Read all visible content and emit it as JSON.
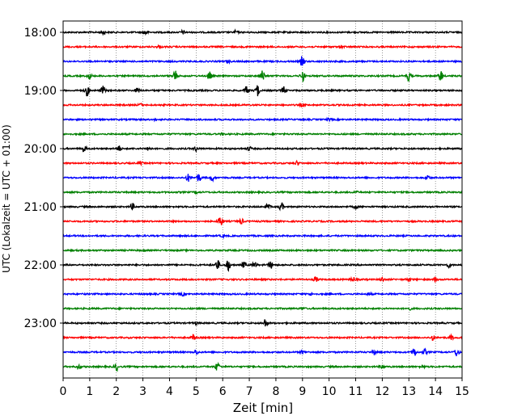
{
  "chart_data": {
    "type": "line",
    "title": "",
    "xlabel": "Zeit  [min]",
    "ylabel": "UTC (Lokalzeit = UTC + 01:00)",
    "xlim": [
      0,
      15
    ],
    "x_ticks": [
      "0",
      "1",
      "2",
      "3",
      "4",
      "5",
      "6",
      "7",
      "8",
      "9",
      "10",
      "11",
      "12",
      "13",
      "14",
      "15"
    ],
    "y_tick_labels": [
      "18:00",
      "19:00",
      "20:00",
      "21:00",
      "22:00",
      "23:00"
    ],
    "grid": "vertical dotted",
    "row_colors": [
      "#000000",
      "#ff0000",
      "#0000ff",
      "#008000"
    ],
    "traces": [
      {
        "start": "18:00",
        "events": [
          [
            1.5,
            1.0
          ],
          [
            3.1,
            1.1
          ],
          [
            4.5,
            0.7
          ],
          [
            6.5,
            0.7
          ]
        ]
      },
      {
        "start": "18:15",
        "events": [
          [
            3.6,
            0.6
          ],
          [
            10.5,
            0.5
          ]
        ]
      },
      {
        "start": "18:30",
        "events": [
          [
            9.0,
            2.2
          ],
          [
            6.2,
            0.5
          ]
        ]
      },
      {
        "start": "18:45",
        "events": [
          [
            4.2,
            2.2
          ],
          [
            5.5,
            1.6
          ],
          [
            7.5,
            2.5
          ],
          [
            9.0,
            2.5
          ],
          [
            13.0,
            1.8
          ],
          [
            14.2,
            2.2
          ],
          [
            1.0,
            1.2
          ]
        ]
      },
      {
        "start": "19:00",
        "events": [
          [
            0.9,
            2.2
          ],
          [
            1.5,
            1.6
          ],
          [
            2.8,
            1.1
          ],
          [
            6.9,
            1.6
          ],
          [
            7.3,
            2.5
          ],
          [
            8.3,
            1.4
          ]
        ]
      },
      {
        "start": "19:15",
        "events": [
          [
            2.9,
            0.6
          ],
          [
            9.0,
            0.5
          ]
        ]
      },
      {
        "start": "19:30",
        "events": [
          [
            3.5,
            0.4
          ],
          [
            10.0,
            0.4
          ]
        ]
      },
      {
        "start": "19:45",
        "events": [
          [
            6.0,
            0.4
          ]
        ]
      },
      {
        "start": "20:00",
        "events": [
          [
            0.8,
            1.4
          ],
          [
            2.1,
            1.1
          ],
          [
            3.2,
            1.0
          ],
          [
            5.0,
            0.9
          ],
          [
            7.0,
            0.8
          ]
        ]
      },
      {
        "start": "20:15",
        "events": [
          [
            2.9,
            0.6
          ],
          [
            8.8,
            0.8
          ]
        ]
      },
      {
        "start": "20:30",
        "events": [
          [
            4.7,
            1.4
          ],
          [
            5.1,
            1.6
          ],
          [
            5.6,
            1.2
          ],
          [
            13.7,
            1.2
          ]
        ]
      },
      {
        "start": "20:45",
        "events": [
          [
            5.0,
            0.4
          ],
          [
            11.0,
            0.4
          ]
        ]
      },
      {
        "start": "21:00",
        "events": [
          [
            2.6,
            1.2
          ],
          [
            7.7,
            1.1
          ],
          [
            8.2,
            1.7
          ],
          [
            11.0,
            0.6
          ]
        ]
      },
      {
        "start": "21:15",
        "events": [
          [
            5.9,
            2.3
          ],
          [
            6.7,
            1.0
          ]
        ]
      },
      {
        "start": "21:30",
        "events": [
          [
            6.0,
            0.4
          ]
        ]
      },
      {
        "start": "21:45",
        "events": [
          [
            3.0,
            0.4
          ]
        ]
      },
      {
        "start": "22:00",
        "events": [
          [
            5.8,
            2.0
          ],
          [
            6.2,
            2.6
          ],
          [
            6.8,
            1.2
          ],
          [
            7.2,
            1.3
          ],
          [
            7.8,
            1.4
          ],
          [
            14.5,
            0.9
          ]
        ]
      },
      {
        "start": "22:15",
        "events": [
          [
            9.5,
            1.0
          ],
          [
            10.9,
            0.9
          ],
          [
            12.0,
            0.8
          ],
          [
            13.0,
            0.7
          ],
          [
            14.0,
            0.7
          ]
        ]
      },
      {
        "start": "22:30",
        "events": [
          [
            4.5,
            0.6
          ],
          [
            9.3,
            0.5
          ],
          [
            11.5,
            0.5
          ]
        ]
      },
      {
        "start": "22:45",
        "events": [
          [
            9.0,
            0.5
          ],
          [
            13.0,
            0.6
          ]
        ]
      },
      {
        "start": "23:00",
        "events": [
          [
            7.6,
            1.6
          ],
          [
            5.0,
            0.5
          ]
        ]
      },
      {
        "start": "23:15",
        "events": [
          [
            4.9,
            1.0
          ],
          [
            13.9,
            1.0
          ],
          [
            14.6,
            0.8
          ]
        ]
      },
      {
        "start": "23:30",
        "events": [
          [
            5.0,
            1.0
          ],
          [
            11.7,
            0.9
          ],
          [
            13.2,
            1.8
          ],
          [
            13.6,
            1.1
          ],
          [
            14.8,
            1.8
          ],
          [
            9.0,
            0.6
          ]
        ]
      },
      {
        "start": "23:45",
        "events": [
          [
            2.0,
            1.5
          ],
          [
            5.8,
            1.8
          ],
          [
            0.6,
            0.9
          ],
          [
            12.0,
            0.8
          ],
          [
            13.5,
            0.7
          ]
        ]
      }
    ]
  }
}
